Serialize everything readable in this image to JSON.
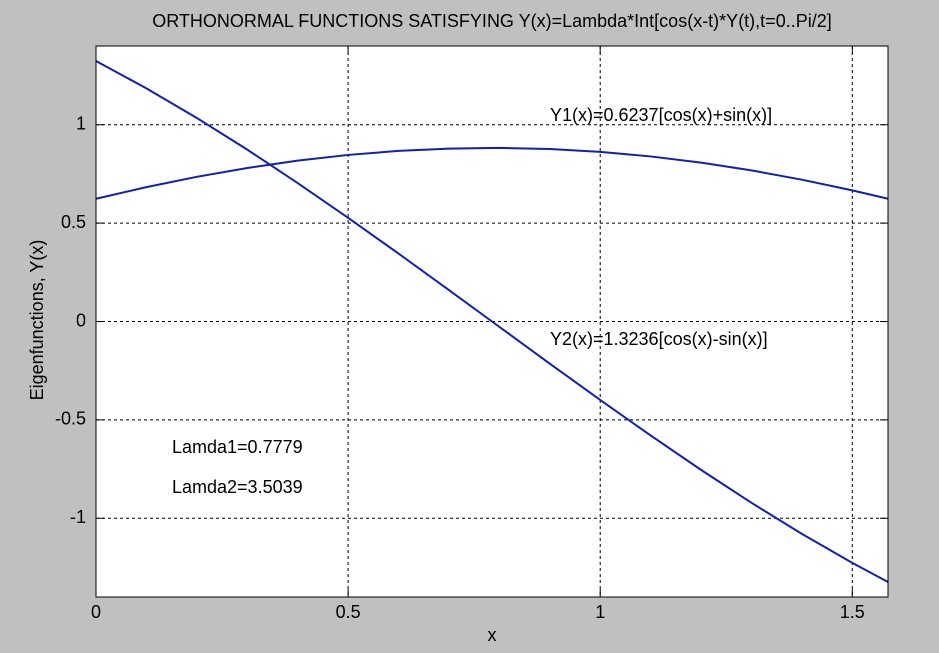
{
  "chart_data": {
    "type": "line",
    "title": "ORTHONORMAL FUNCTIONS SATISFYING Y(x)=Lambda*Int[cos(x-t)*Y(t),t=0..Pi/2]",
    "xlabel": "x",
    "ylabel": "Eigenfunctions, Y(x)",
    "x": [
      0,
      0.1,
      0.2,
      0.3,
      0.4,
      0.5,
      0.6,
      0.7,
      0.8,
      0.9,
      1.0,
      1.1,
      1.2,
      1.3,
      1.4,
      1.5,
      1.5708
    ],
    "series": [
      {
        "color": "#1020b0",
        "values": [
          0.6237,
          0.6829,
          0.7352,
          0.7802,
          0.8174,
          0.8464,
          0.8669,
          0.8788,
          0.882,
          0.8763,
          0.8618,
          0.8388,
          0.8073,
          0.7678,
          0.7206,
          0.6663,
          0.6237
        ]
      },
      {
        "color": "#1020b0",
        "values": [
          1.3236,
          1.1849,
          1.0343,
          0.8733,
          0.7037,
          0.527,
          0.3451,
          0.1597,
          -0.0273,
          -0.2141,
          -0.3986,
          -0.5792,
          -0.754,
          -0.9213,
          -1.0794,
          -1.2266,
          -1.3236
        ]
      }
    ],
    "xlim": [
      0,
      1.5708
    ],
    "xticks": [
      0,
      0.5,
      1,
      1.5
    ],
    "ylim": [
      -1.4,
      1.4
    ],
    "yticks": [
      -1,
      -0.5,
      0,
      0.5,
      1
    ],
    "grid": true,
    "annotations": [
      "Y1(x)=0.6237[cos(x)+sin(x)]",
      "Y2(x)=1.3236[cos(x)-sin(x)]",
      "Lamda1=0.7779",
      "Lamda2=3.5039"
    ]
  }
}
